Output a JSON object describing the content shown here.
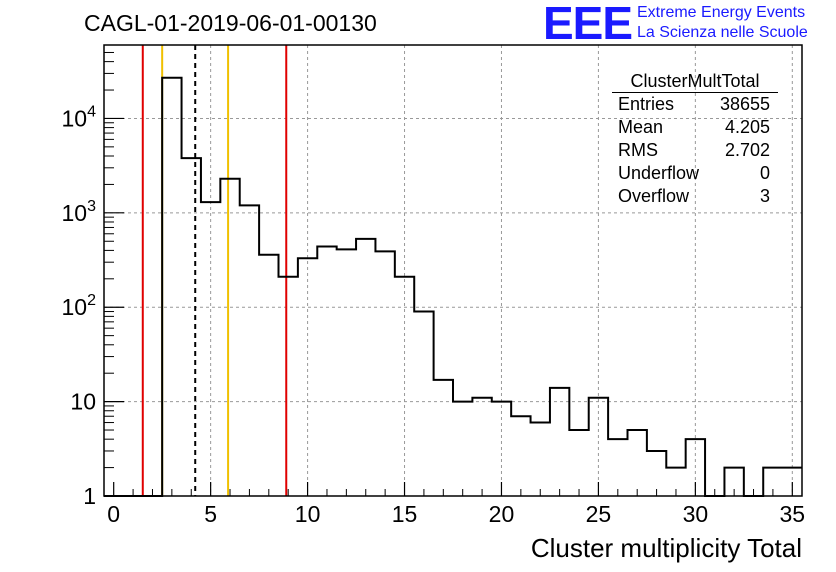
{
  "title": "CAGL-01-2019-06-01-00130",
  "logo": {
    "letters": "EEE",
    "line1": "Extreme Energy Events",
    "line2": "La Scienza nelle Scuole"
  },
  "stats": {
    "title": "ClusterMultTotal",
    "rows": [
      {
        "label": "Entries",
        "value": "38655"
      },
      {
        "label": "Mean",
        "value": "4.205"
      },
      {
        "label": "RMS",
        "value": "2.702"
      },
      {
        "label": "Underflow",
        "value": "0"
      },
      {
        "label": "Overflow",
        "value": "3"
      }
    ]
  },
  "chart_data": {
    "type": "histogram",
    "title": "CAGL-01-2019-06-01-00130",
    "xlabel": "Cluster multiplicity Total",
    "ylabel": "",
    "xlim": [
      -0.5,
      35.5
    ],
    "ylim": [
      1,
      60000
    ],
    "yscale": "log",
    "grid": true,
    "bin_edges_start": -0.5,
    "bin_width": 1,
    "counts": [
      0,
      0,
      0,
      27000,
      3800,
      1300,
      2300,
      1200,
      360,
      210,
      330,
      440,
      410,
      530,
      390,
      210,
      90,
      17,
      10,
      11,
      10,
      7,
      6,
      14,
      5,
      11,
      4,
      5,
      3,
      2,
      4,
      1,
      2,
      1,
      2,
      2
    ],
    "x_ticks": [
      0,
      5,
      10,
      15,
      20,
      25,
      30,
      35
    ],
    "y_ticks": [
      {
        "value": 1,
        "base": "1",
        "exp": ""
      },
      {
        "value": 10,
        "base": "10",
        "exp": ""
      },
      {
        "value": 100,
        "base": "10",
        "exp": "2"
      },
      {
        "value": 1000,
        "base": "10",
        "exp": "3"
      },
      {
        "value": 10000,
        "base": "10",
        "exp": "4"
      }
    ],
    "vertical_lines": [
      {
        "x": 1.5,
        "color": "#e00000",
        "style": "solid"
      },
      {
        "x": 2.5,
        "color": "#f0c000",
        "style": "solid"
      },
      {
        "x": 4.205,
        "color": "#000000",
        "style": "dashed"
      },
      {
        "x": 5.9,
        "color": "#f0c000",
        "style": "solid"
      },
      {
        "x": 8.9,
        "color": "#e00000",
        "style": "solid"
      }
    ]
  }
}
